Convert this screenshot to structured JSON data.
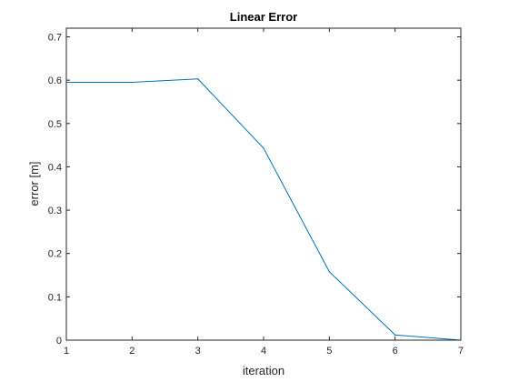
{
  "chart_data": {
    "type": "line",
    "title": "Linear Error",
    "xlabel": "iteration",
    "ylabel": "error [m]",
    "x": [
      1,
      2,
      3,
      4,
      5,
      6,
      7
    ],
    "series": [
      {
        "values": [
          0.595,
          0.595,
          0.603,
          0.443,
          0.158,
          0.012,
          0.0
        ],
        "color": "#0072BD"
      }
    ],
    "xlim": [
      1,
      7
    ],
    "ylim": [
      0,
      0.72
    ],
    "xticks": [
      1,
      2,
      3,
      4,
      5,
      6,
      7
    ],
    "xtick_labels": [
      "1",
      "2",
      "3",
      "4",
      "5",
      "6",
      "7"
    ],
    "yticks": [
      0,
      0.1,
      0.2,
      0.3,
      0.4,
      0.5,
      0.6,
      0.7
    ],
    "ytick_labels": [
      "0",
      "0.1",
      "0.2",
      "0.3",
      "0.4",
      "0.5",
      "0.6",
      "0.7"
    ],
    "grid": false,
    "box": true,
    "axis_color": "#262626"
  }
}
